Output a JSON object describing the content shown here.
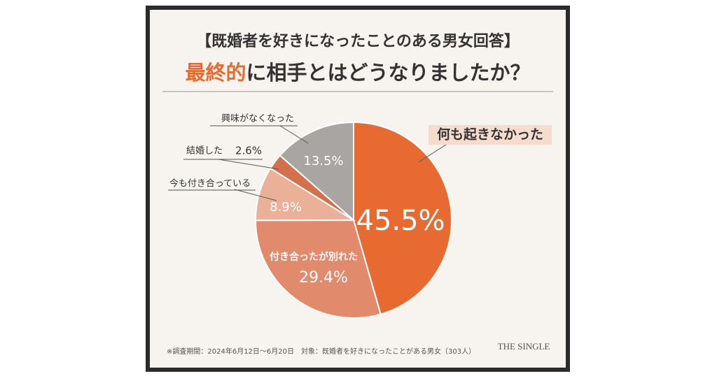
{
  "chart_data": {
    "type": "pie",
    "title": "【既婚者を好きになったことのある男女回答】",
    "subtitle_parts": [
      "最終的",
      "に相手とはどうなりましたか？"
    ],
    "categories": [
      "何も起きなかった",
      "付き合ったが別れた",
      "今も付き合っている",
      "結婚した",
      "興味がなくなった"
    ],
    "values": [
      45.5,
      29.4,
      8.9,
      2.6,
      13.5
    ],
    "value_labels": [
      "45.5%",
      "29.4%",
      "8.9%",
      "2.6%",
      "13.5%"
    ],
    "colors": [
      "#e76b30",
      "#e28a6c",
      "#ebb198",
      "#d5704d",
      "#a8a5a2"
    ],
    "footnote": "※調査期間：2024年6月12日～6月20日　対象：既婚者を好きになったことがある男女（303人）",
    "logo": "THE SINGLE"
  }
}
